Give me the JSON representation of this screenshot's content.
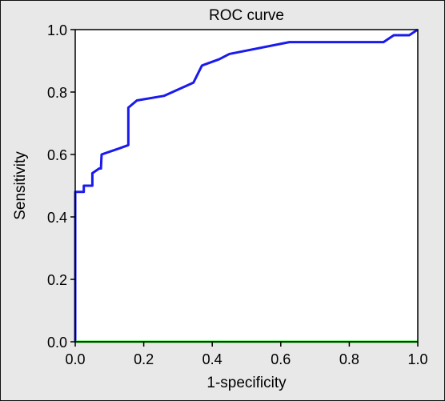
{
  "chart_data": {
    "type": "line",
    "title": "ROC curve",
    "xlabel": "1-specificity",
    "ylabel": "Sensitivity",
    "xlim": [
      0,
      1
    ],
    "ylim": [
      0,
      1
    ],
    "x_ticks": [
      "0.0",
      "0.2",
      "0.4",
      "0.6",
      "0.8",
      "1.0"
    ],
    "y_ticks": [
      "0.0",
      "0.2",
      "0.4",
      "0.6",
      "0.8",
      "1.0"
    ],
    "grid": false,
    "series": [
      {
        "color": "#1a1aee",
        "points": [
          [
            0.0,
            0.0
          ],
          [
            0.0,
            0.48
          ],
          [
            0.025,
            0.48
          ],
          [
            0.025,
            0.5
          ],
          [
            0.05,
            0.5
          ],
          [
            0.05,
            0.54
          ],
          [
            0.07,
            0.555
          ],
          [
            0.075,
            0.555
          ],
          [
            0.077,
            0.6
          ],
          [
            0.13,
            0.62
          ],
          [
            0.155,
            0.63
          ],
          [
            0.155,
            0.75
          ],
          [
            0.18,
            0.773
          ],
          [
            0.26,
            0.788
          ],
          [
            0.345,
            0.83
          ],
          [
            0.37,
            0.885
          ],
          [
            0.42,
            0.905
          ],
          [
            0.45,
            0.922
          ],
          [
            0.625,
            0.96
          ],
          [
            0.9,
            0.96
          ],
          [
            0.93,
            0.982
          ],
          [
            0.975,
            0.982
          ],
          [
            1.0,
            1.0
          ]
        ]
      },
      {
        "color": "#22ee22",
        "points": [
          [
            0.0,
            0.0
          ],
          [
            1.0,
            0.0
          ]
        ]
      }
    ]
  }
}
